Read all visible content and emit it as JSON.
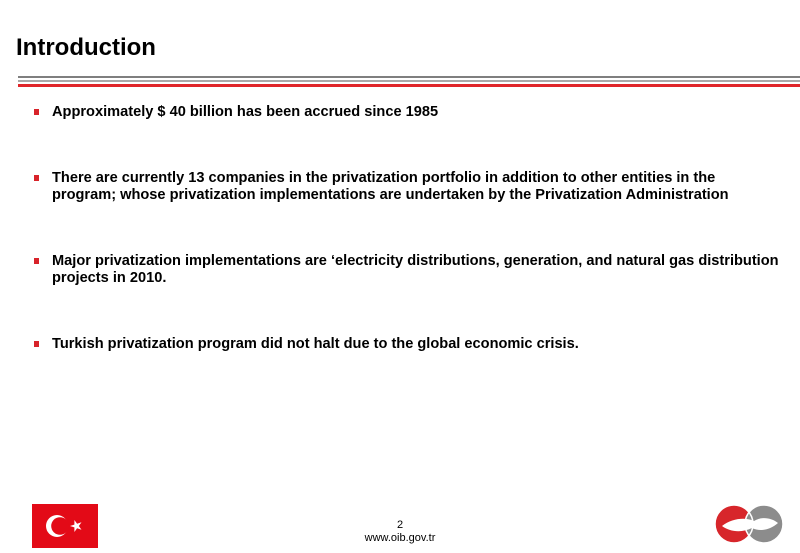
{
  "slide": {
    "title": "Introduction",
    "bullets": [
      "Approximately $ 40 billion has been accrued since 1985",
      "There are currently 13 companies in the privatization portfolio in addition to other entities in the program; whose privatization implementations are undertaken by the Privatization Administration",
      "Major privatization implementations are  ‘electricity distributions, generation, and natural gas distribution projects in 2010.",
      "Turkish privatization program did not halt due to the global economic crisis."
    ]
  },
  "footer": {
    "page_number": "2",
    "website": "www.oib.gov.tr"
  },
  "icons": {
    "flag": "turkish-flag-icon",
    "logo": "oib-logo-icon"
  },
  "colors": {
    "accent_red": "#e0262a",
    "rule_gray": "#7f7f7f",
    "flag_red": "#e30a17"
  }
}
